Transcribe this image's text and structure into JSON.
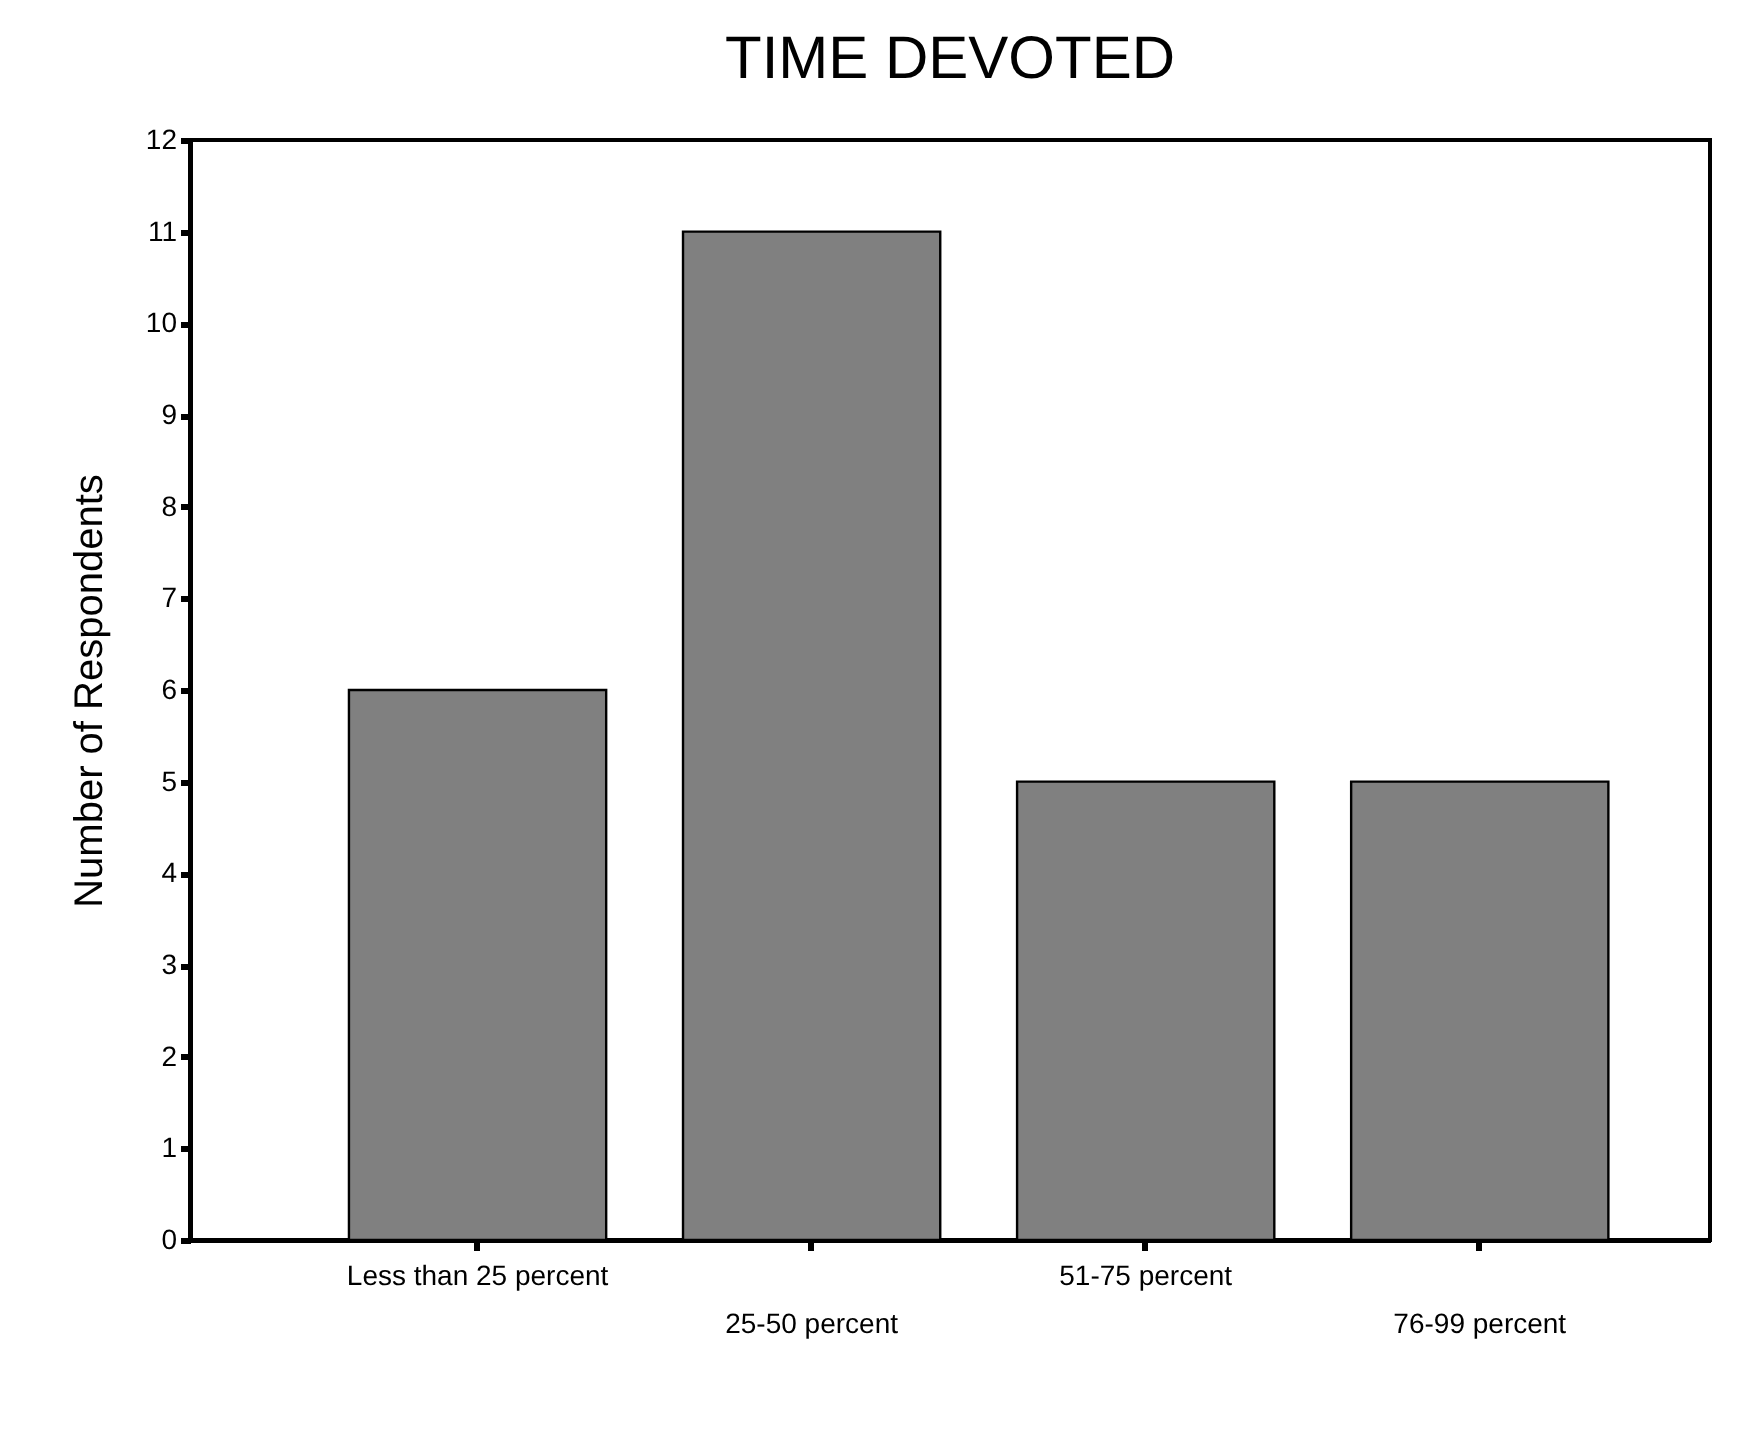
{
  "chart_data": {
    "type": "bar",
    "title": "TIME DEVOTED",
    "ylabel": "Number of Respondents",
    "categories": [
      "Less than 25 percent",
      "25-50 percent",
      "51-75 percent",
      "76-99 percent"
    ],
    "values": [
      6,
      11,
      5,
      5
    ],
    "color": "#808080",
    "ylim": [
      0,
      12
    ],
    "yticks": [
      0,
      1,
      2,
      3,
      4,
      5,
      6,
      7,
      8,
      9,
      10,
      11,
      12
    ]
  }
}
